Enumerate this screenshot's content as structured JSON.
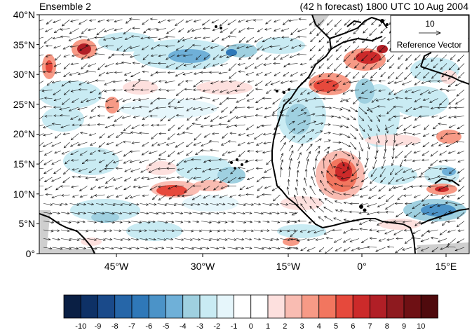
{
  "title_left": "Ensemble 2",
  "title_right": "(42 h forecast) 1800 UTC 10 Aug 2004",
  "lat_labels": [
    "40°N",
    "35°N",
    "30°N",
    "25°N",
    "20°N",
    "15°N",
    "10°N",
    "5°N",
    "0°"
  ],
  "lon_labels": [
    "45°W",
    "30°W",
    "15°W",
    "0°",
    "15°E"
  ],
  "reference_vector": {
    "value": "10",
    "label": "Reference Vector"
  },
  "colorbar": {
    "labels": [
      "-10",
      "-9",
      "-8",
      "-7",
      "-6",
      "-5",
      "-4",
      "-3",
      "-2",
      "-1",
      "0",
      "1",
      "2",
      "3",
      "4",
      "5",
      "6",
      "7",
      "8",
      "9",
      "10"
    ],
    "colors": [
      "#0a1f44",
      "#0e3166",
      "#1a4a8a",
      "#2666a8",
      "#2f78b8",
      "#4b93c8",
      "#6fb0d8",
      "#9fd0e0",
      "#c9ebf3",
      "#e6f6fb",
      "#ffffff",
      "#ffffff",
      "#fde0de",
      "#f9bcb2",
      "#f79a86",
      "#f2765f",
      "#e6493c",
      "#cc2a2a",
      "#b11f26",
      "#8e1a1f",
      "#6e1014",
      "#4f0a0d"
    ]
  },
  "colors": {
    "land_mask": "#cfcfcf",
    "coast": "#000000",
    "arrow": "#111111"
  }
}
